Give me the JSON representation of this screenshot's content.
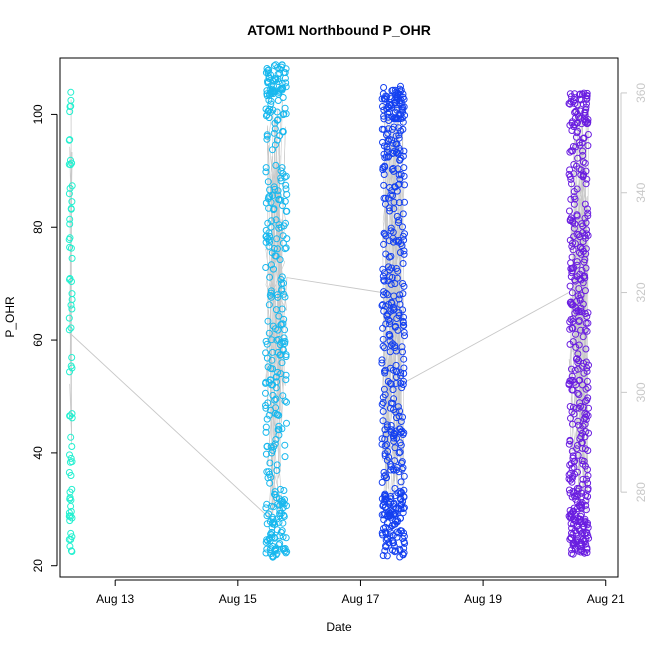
{
  "chart_data": {
    "type": "scatter",
    "title": "ATOM1 Northbound P_OHR",
    "xlabel": "Date",
    "ylabel": "P_OHR",
    "x_ticks": [
      "Aug 13",
      "Aug 15",
      "Aug 17",
      "Aug 19",
      "Aug 21"
    ],
    "x_tick_days": [
      13,
      15,
      17,
      19,
      21
    ],
    "xlim_days": [
      12.1,
      21.2
    ],
    "y_ticks": [
      20,
      40,
      60,
      80,
      100
    ],
    "ylim": [
      18,
      110
    ],
    "y2_ticks": [
      280,
      300,
      320,
      340,
      360
    ],
    "y2lim": [
      263,
      367
    ],
    "secondary_line_color": "#c8c8c8",
    "series": [
      {
        "color": "#22f0d0",
        "x_range_days": [
          12.25,
          12.3
        ],
        "y_range": [
          22.5,
          104
        ],
        "count": 70
      },
      {
        "color": "#18b8ee",
        "x_range_days": [
          15.45,
          15.8
        ],
        "y_range": [
          21.5,
          109
        ],
        "count": 360
      },
      {
        "color": "#1440f0",
        "x_range_days": [
          17.35,
          17.72
        ],
        "y_range": [
          21.5,
          105
        ],
        "count": 480
      },
      {
        "color": "#6a1ee0",
        "x_range_days": [
          20.4,
          20.72
        ],
        "y_range": [
          22,
          104
        ],
        "count": 430
      }
    ],
    "secondary_path": [
      {
        "day": 12.25,
        "y2": 312
      },
      {
        "day": 15.5,
        "y2": 275
      },
      {
        "day": 15.8,
        "y2": 323
      },
      {
        "day": 17.35,
        "y2": 320
      },
      {
        "day": 17.72,
        "y2": 302
      },
      {
        "day": 20.4,
        "y2": 320
      }
    ]
  }
}
